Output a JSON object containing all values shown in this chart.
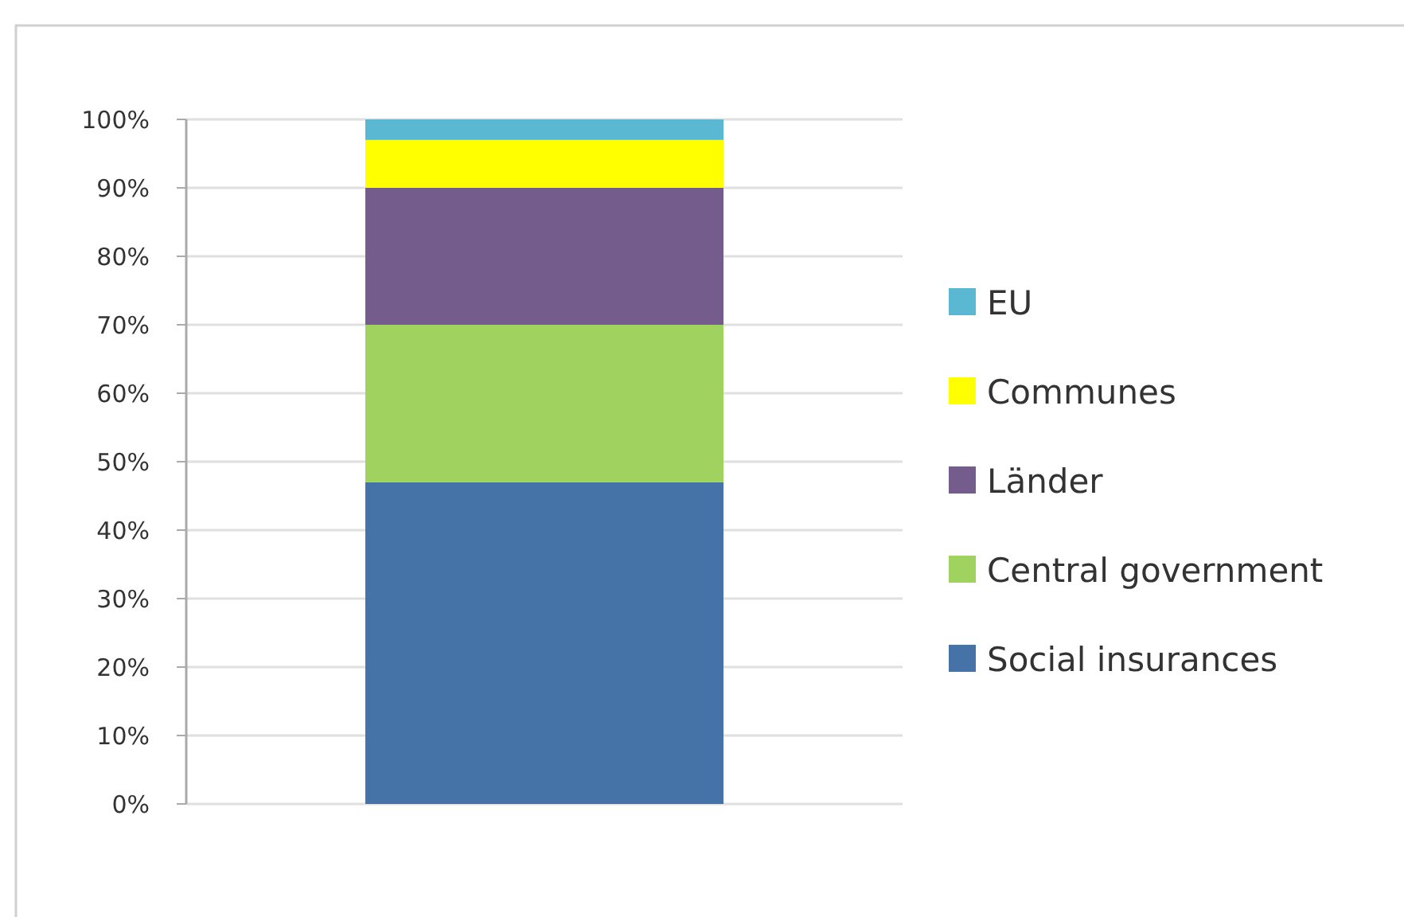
{
  "chart_data": {
    "type": "bar",
    "stacked": true,
    "categories": [
      null
    ],
    "series": [
      {
        "name": "Social insurances",
        "color": "#4572a7",
        "values": [
          47
        ]
      },
      {
        "name": "Central government",
        "color": "#a0d260",
        "values": [
          23
        ]
      },
      {
        "name": "Länder",
        "color": "#745d8c",
        "values": [
          20
        ]
      },
      {
        "name": "Communes",
        "color": "#ffff00",
        "values": [
          7
        ]
      },
      {
        "name": "EU",
        "color": "#5ab8d2",
        "values": [
          3
        ]
      }
    ],
    "ylim": [
      0,
      100
    ],
    "yticks": [
      {
        "value": 0,
        "label": "0%"
      },
      {
        "value": 10,
        "label": "10%"
      },
      {
        "value": 20,
        "label": "20%"
      },
      {
        "value": 30,
        "label": "30%"
      },
      {
        "value": 40,
        "label": "40%"
      },
      {
        "value": 50,
        "label": "50%"
      },
      {
        "value": 60,
        "label": "60%"
      },
      {
        "value": 70,
        "label": "70%"
      },
      {
        "value": 80,
        "label": "80%"
      },
      {
        "value": 90,
        "label": "90%"
      },
      {
        "value": 100,
        "label": "100%"
      }
    ],
    "grid": "y",
    "legend": "right"
  }
}
